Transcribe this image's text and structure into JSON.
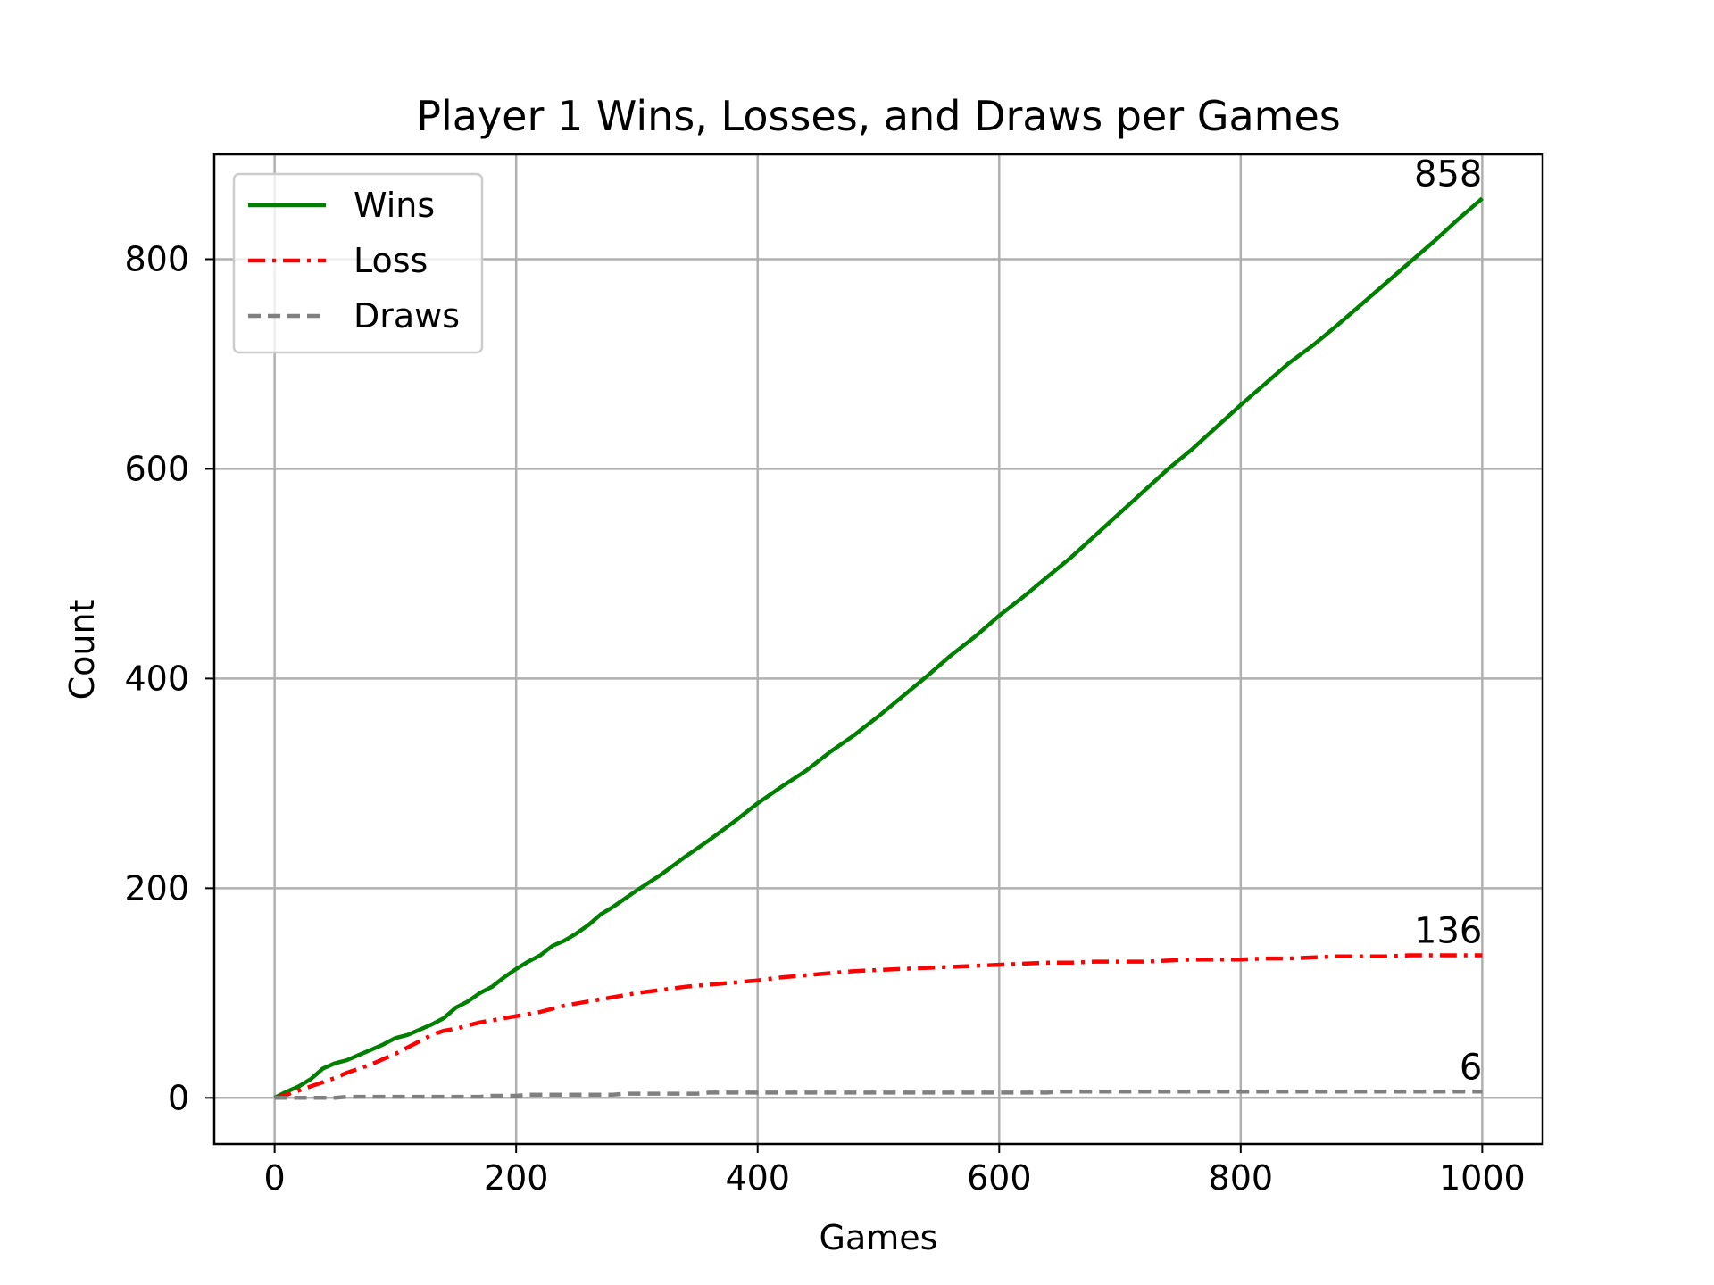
{
  "chart_data": {
    "type": "line",
    "title": "Player 1 Wins, Losses, and Draws per Games",
    "xlabel": "Games",
    "ylabel": "Count",
    "xlim": [
      -50,
      1050
    ],
    "ylim": [
      -44,
      900
    ],
    "xticks": [
      0,
      200,
      400,
      600,
      800,
      1000
    ],
    "yticks": [
      0,
      200,
      400,
      600,
      800
    ],
    "grid": true,
    "legend_position": "top-left",
    "series": [
      {
        "name": "Wins",
        "color": "#008000",
        "style": "solid",
        "end_label": "858",
        "points": [
          [
            0,
            0
          ],
          [
            10,
            6
          ],
          [
            20,
            11
          ],
          [
            30,
            18
          ],
          [
            40,
            28
          ],
          [
            50,
            33
          ],
          [
            60,
            36
          ],
          [
            70,
            41
          ],
          [
            80,
            46
          ],
          [
            90,
            51
          ],
          [
            100,
            57
          ],
          [
            110,
            60
          ],
          [
            120,
            65
          ],
          [
            130,
            70
          ],
          [
            140,
            76
          ],
          [
            150,
            86
          ],
          [
            160,
            92
          ],
          [
            170,
            100
          ],
          [
            180,
            106
          ],
          [
            190,
            115
          ],
          [
            200,
            123
          ],
          [
            210,
            130
          ],
          [
            220,
            136
          ],
          [
            230,
            145
          ],
          [
            240,
            150
          ],
          [
            250,
            157
          ],
          [
            260,
            165
          ],
          [
            270,
            175
          ],
          [
            280,
            182
          ],
          [
            290,
            190
          ],
          [
            300,
            198
          ],
          [
            320,
            213
          ],
          [
            340,
            230
          ],
          [
            360,
            246
          ],
          [
            380,
            263
          ],
          [
            400,
            281
          ],
          [
            420,
            297
          ],
          [
            440,
            312
          ],
          [
            460,
            330
          ],
          [
            480,
            346
          ],
          [
            500,
            364
          ],
          [
            520,
            383
          ],
          [
            540,
            402
          ],
          [
            560,
            422
          ],
          [
            580,
            440
          ],
          [
            600,
            460
          ],
          [
            620,
            478
          ],
          [
            640,
            497
          ],
          [
            660,
            516
          ],
          [
            680,
            537
          ],
          [
            700,
            558
          ],
          [
            720,
            579
          ],
          [
            740,
            600
          ],
          [
            760,
            619
          ],
          [
            780,
            640
          ],
          [
            800,
            661
          ],
          [
            820,
            681
          ],
          [
            840,
            701
          ],
          [
            860,
            718
          ],
          [
            880,
            737
          ],
          [
            900,
            757
          ],
          [
            920,
            777
          ],
          [
            940,
            797
          ],
          [
            960,
            817
          ],
          [
            980,
            838
          ],
          [
            1000,
            858
          ]
        ]
      },
      {
        "name": "Loss",
        "color": "#ff0000",
        "style": "dashdot",
        "end_label": "136",
        "points": [
          [
            0,
            0
          ],
          [
            10,
            3
          ],
          [
            20,
            7
          ],
          [
            30,
            11
          ],
          [
            40,
            15
          ],
          [
            50,
            19
          ],
          [
            60,
            24
          ],
          [
            70,
            28
          ],
          [
            80,
            32
          ],
          [
            90,
            37
          ],
          [
            100,
            42
          ],
          [
            110,
            48
          ],
          [
            120,
            54
          ],
          [
            130,
            60
          ],
          [
            140,
            64
          ],
          [
            150,
            66
          ],
          [
            160,
            69
          ],
          [
            170,
            72
          ],
          [
            180,
            74
          ],
          [
            190,
            76
          ],
          [
            200,
            78
          ],
          [
            220,
            82
          ],
          [
            240,
            88
          ],
          [
            260,
            92
          ],
          [
            280,
            96
          ],
          [
            300,
            100
          ],
          [
            320,
            103
          ],
          [
            340,
            106
          ],
          [
            360,
            108
          ],
          [
            380,
            110
          ],
          [
            400,
            112
          ],
          [
            420,
            115
          ],
          [
            440,
            117
          ],
          [
            460,
            119
          ],
          [
            480,
            121
          ],
          [
            500,
            122
          ],
          [
            520,
            123
          ],
          [
            540,
            124
          ],
          [
            560,
            125
          ],
          [
            580,
            126
          ],
          [
            600,
            127
          ],
          [
            620,
            128
          ],
          [
            640,
            129
          ],
          [
            660,
            129
          ],
          [
            680,
            130
          ],
          [
            700,
            130
          ],
          [
            720,
            130
          ],
          [
            740,
            131
          ],
          [
            760,
            132
          ],
          [
            780,
            132
          ],
          [
            800,
            132
          ],
          [
            820,
            133
          ],
          [
            840,
            133
          ],
          [
            860,
            134
          ],
          [
            880,
            135
          ],
          [
            900,
            135
          ],
          [
            920,
            135
          ],
          [
            940,
            136
          ],
          [
            960,
            136
          ],
          [
            980,
            136
          ],
          [
            1000,
            136
          ]
        ]
      },
      {
        "name": "Draws",
        "color": "#808080",
        "style": "dashed",
        "end_label": "6",
        "points": [
          [
            0,
            0
          ],
          [
            50,
            0
          ],
          [
            60,
            1
          ],
          [
            170,
            1
          ],
          [
            180,
            2
          ],
          [
            200,
            2
          ],
          [
            210,
            3
          ],
          [
            280,
            3
          ],
          [
            290,
            4
          ],
          [
            350,
            4
          ],
          [
            360,
            5
          ],
          [
            640,
            5
          ],
          [
            650,
            6
          ],
          [
            1000,
            6
          ]
        ]
      }
    ]
  }
}
